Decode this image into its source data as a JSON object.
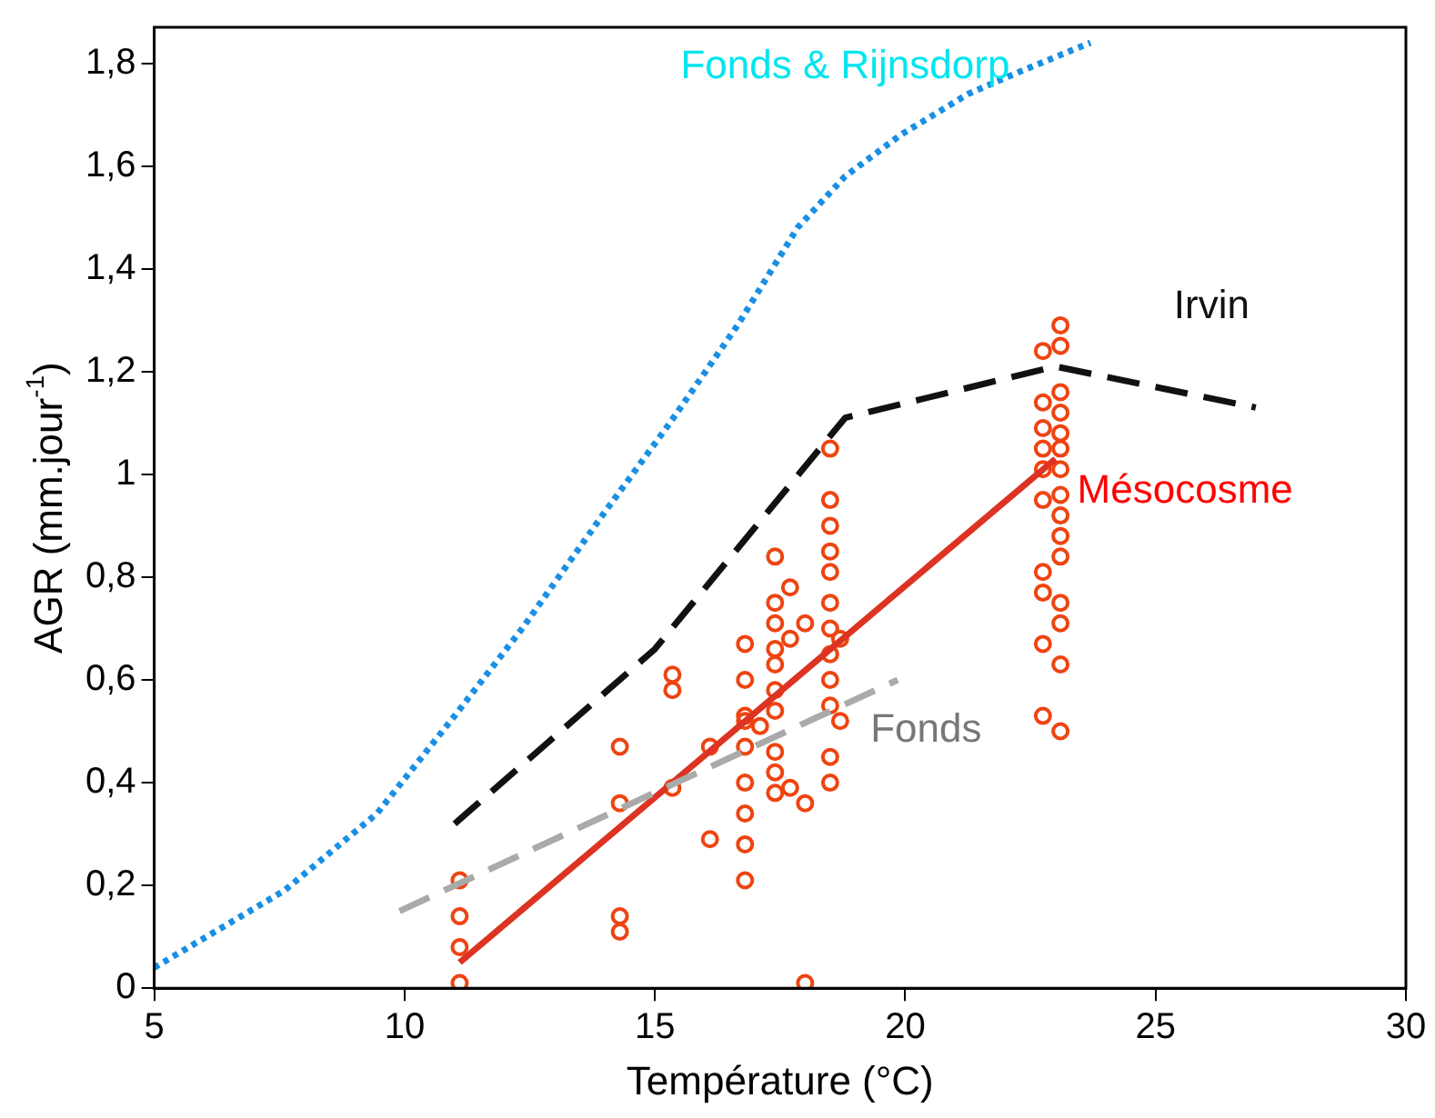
{
  "chart_data": {
    "type": "line",
    "xlabel": "Température (°C)",
    "ylabel": "AGR (mm.jour$^{-1}$)",
    "xlim": [
      5,
      30
    ],
    "xticks": [
      5,
      10,
      15,
      20,
      25,
      30
    ],
    "ylim": [
      0,
      1.87
    ],
    "yticks": [
      0,
      {
        "value": 0.2,
        "label": "0,2"
      },
      {
        "value": 0.4,
        "label": "0,4"
      },
      {
        "value": 0.6,
        "label": "0,6"
      },
      {
        "value": 0.8,
        "label": "0,8"
      },
      1,
      {
        "value": 1.2,
        "label": "1,2"
      },
      {
        "value": 1.4,
        "label": "1,4"
      },
      {
        "value": 1.6,
        "label": "1,6"
      },
      {
        "value": 1.8,
        "label": "1,8"
      }
    ],
    "grid": false,
    "legend": false,
    "series": [
      {
        "name": "Fonds & Rijnsdorp",
        "color": "#1a8fe3",
        "line_style": "dotted",
        "marker": "none",
        "x": [
          5,
          7.6,
          9.45,
          11,
          12.35,
          13.95,
          15.3,
          16.65,
          17.85,
          18.8,
          19.9,
          21.25,
          22.2,
          23.7
        ],
        "values": [
          0.04,
          0.19,
          0.34,
          0.53,
          0.7,
          0.92,
          1.1,
          1.29,
          1.48,
          1.58,
          1.66,
          1.74,
          1.78,
          1.84
        ]
      },
      {
        "name": "Irvin",
        "color": "#111111",
        "line_style": "dashed",
        "marker": "none",
        "x": [
          11,
          15,
          18.8,
          23,
          27
        ],
        "values": [
          0.32,
          0.66,
          1.11,
          1.21,
          1.13
        ]
      },
      {
        "name": "Fonds",
        "color": "#aaaaaa",
        "line_style": "dashed",
        "marker": "none",
        "x": [
          9.9,
          19.85
        ],
        "values": [
          0.15,
          0.6
        ]
      },
      {
        "name": "Mésocosme",
        "color": "#dd3322",
        "line_style": "solid",
        "marker": "none",
        "x": [
          11.1,
          23
        ],
        "values": [
          0.05,
          1.03
        ]
      },
      {
        "type": "scatter",
        "color": "#ee4411",
        "marker": "circle",
        "x": [
          11.1,
          11.1,
          11.1,
          11.1,
          14.3,
          14.3,
          14.3,
          14.3,
          15.35,
          15.35,
          15.35,
          16.1,
          16.1,
          16.8,
          16.8,
          16.8,
          16.8,
          16.8,
          16.8,
          16.8,
          16.8,
          16.8,
          17.1,
          17.4,
          17.4,
          17.4,
          17.4,
          17.4,
          17.4,
          17.4,
          17.4,
          17.4,
          17.4,
          17.7,
          17.7,
          17.7,
          18,
          18,
          18,
          18.5,
          18.5,
          18.5,
          18.5,
          18.5,
          18.5,
          18.5,
          18.5,
          18.5,
          18.5,
          18.5,
          18.5,
          18.7,
          18.7,
          22.75,
          22.75,
          22.75,
          22.75,
          22.75,
          22.75,
          22.75,
          22.75,
          22.75,
          22.75,
          23.1,
          23.1,
          23.1,
          23.1,
          23.1,
          23.1,
          23.1,
          23.1,
          23.1,
          23.1,
          23.1,
          23.1,
          23.1,
          23.1,
          23.1
        ],
        "values": [
          0.21,
          0.14,
          0.08,
          0.01,
          0.47,
          0.36,
          0.14,
          0.11,
          0.61,
          0.58,
          0.39,
          0.47,
          0.29,
          0.67,
          0.6,
          0.53,
          0.52,
          0.47,
          0.4,
          0.34,
          0.28,
          0.21,
          0.51,
          0.84,
          0.75,
          0.71,
          0.66,
          0.63,
          0.58,
          0.54,
          0.46,
          0.42,
          0.38,
          0.78,
          0.68,
          0.39,
          0.71,
          0.36,
          0.01,
          1.05,
          0.95,
          0.9,
          0.85,
          0.81,
          0.75,
          0.7,
          0.65,
          0.6,
          0.55,
          0.45,
          0.4,
          0.68,
          0.52,
          1.24,
          1.14,
          1.09,
          1.05,
          1.01,
          0.95,
          0.81,
          0.77,
          0.67,
          0.53,
          1.29,
          1.25,
          1.16,
          1.12,
          1.08,
          1.05,
          1.01,
          0.96,
          0.92,
          0.88,
          0.84,
          0.75,
          0.71,
          0.63,
          0.5
        ]
      }
    ]
  }
}
